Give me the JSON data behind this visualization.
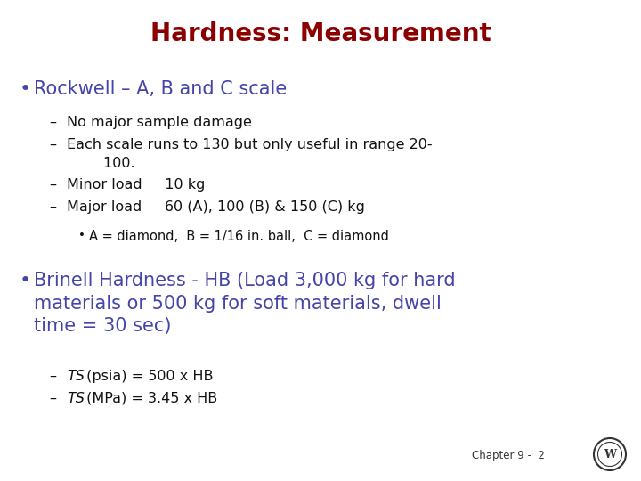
{
  "title": "Hardness: Measurement",
  "title_color": "#8B0000",
  "title_fontsize": 20,
  "background_color": "#FFFFFF",
  "bullet1_text": "Rockwell – A, B and C scale",
  "bullet1_color": "#4444AA",
  "bullet1_fontsize": 15,
  "sub1_items": [
    "No major sample damage",
    "Each scale runs to 130 but only useful in range 20-\n        100.",
    "Minor load     10 kg",
    "Major load     60 (A), 100 (B) & 150 (C) kg"
  ],
  "sub1_color": "#111111",
  "sub1_fontsize": 11.5,
  "sub2_item": "A = diamond,  B = 1/16 in. ball,  C = diamond",
  "sub2_color": "#111111",
  "sub2_fontsize": 10.5,
  "bullet2_text": "Brinell Hardness - HB (Load 3,000 kg for hard\nmaterials or 500 kg for soft materials, dwell\ntime = 30 sec)",
  "bullet2_color": "#4444AA",
  "bullet2_fontsize": 15,
  "sub3_items": [
    " (psia) = 500 x HB",
    " (MPa) = 3.45 x HB"
  ],
  "sub3_ts": [
    "TS",
    "TS"
  ],
  "sub3_color": "#111111",
  "sub3_fontsize": 11.5,
  "footer_text": "Chapter 9 -  2",
  "footer_color": "#333333",
  "footer_fontsize": 8.5,
  "logo_color": "#333333"
}
